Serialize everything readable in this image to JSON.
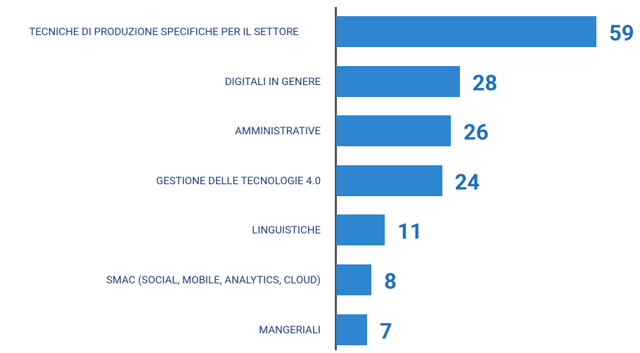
{
  "chart_data": {
    "type": "bar",
    "orientation": "horizontal",
    "categories": [
      "TECNICHE DI PRODUZIONE SPECIFICHE PER IL SETTORE",
      "DIGITALI IN GENERE",
      "AMMINISTRATIVE",
      "GESTIONE DELLE TECNOLOGIE 4.0",
      "LINGUISTICHE",
      "SMAC (SOCIAL, MOBILE, ANALYTICS, CLOUD)",
      "MANGERIALI"
    ],
    "values": [
      59,
      28,
      26,
      24,
      11,
      8,
      7
    ],
    "color": "#2d86cf",
    "label_color": "#1f6fb8",
    "category_color": "#1c3f7a"
  }
}
